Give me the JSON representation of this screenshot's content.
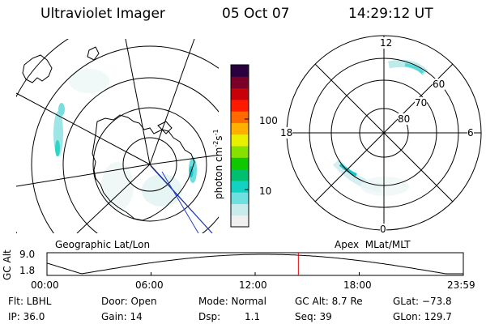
{
  "header": {
    "instrument": "Ultraviolet Imager",
    "date": "05 Oct 07",
    "time": "14:29:12 UT"
  },
  "left_map": {
    "label": "Geographic Lat/Lon"
  },
  "right_map": {
    "label": "Apex  MLat/MLT",
    "mlt_labels": {
      "top": "12",
      "left": "18",
      "right": "6",
      "bottom": "0"
    },
    "lat_labels": [
      "60",
      "70",
      "80"
    ]
  },
  "colorbar": {
    "unit_main": "photon cm",
    "unit_exp1": "-2",
    "unit_mid": "s",
    "unit_exp2": "-1",
    "ticks": [
      "100",
      "10"
    ],
    "colors": [
      "#f0f0f0",
      "#c8ecec",
      "#6ee0e0",
      "#14d2c2",
      "#00c070",
      "#10c800",
      "#88e000",
      "#e8f000",
      "#ffb000",
      "#ff6a00",
      "#ff1a00",
      "#c8000a",
      "#7a0028",
      "#2a0040"
    ]
  },
  "timeline": {
    "ylabel": "GC Alt",
    "ymax": "9.0",
    "ymin": "1.8",
    "xticks": [
      "00:00",
      "06:00",
      "12:00",
      "18:00",
      "23:59"
    ],
    "current_time_hours": 14.49
  },
  "status": {
    "flt": "Flt: LBHL",
    "door": "Door: Open",
    "mode": "Mode: Normal",
    "gcalt": "GC Alt: 8.7 Re",
    "glat": "GLat: −73.8",
    "ip": "IP: 36.0",
    "gain": "Gain: 14",
    "dsp_label": "Dsp:",
    "dsp_value": "1.1",
    "seq": "Seq: 39",
    "glon": "GLon: 129.7"
  }
}
